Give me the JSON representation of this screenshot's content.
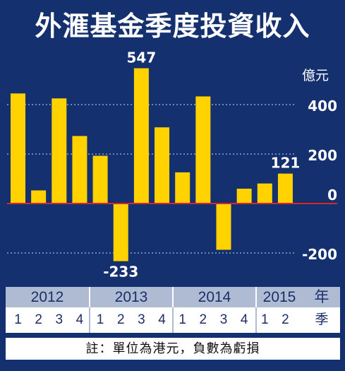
{
  "title": "外滙基金季度投資收入",
  "unit_label": "億元",
  "year_suffix": "年",
  "quarter_suffix": "季",
  "note": "註：單位為港元，負數為虧損",
  "colors": {
    "background": "#15306e",
    "bar": "#ffd200",
    "zero_line": "#d7262f",
    "grid": "#8fa3cc",
    "band_years": "#aebbd3",
    "band_quarters": "#ffffff"
  },
  "chart_data": {
    "type": "bar",
    "title": "外滙基金季度投資收入",
    "ylabel": "億元",
    "ylim": [
      -250,
      600
    ],
    "yticks": [
      400,
      200,
      0,
      -200
    ],
    "grid": true,
    "years": [
      "2012",
      "2013",
      "2014",
      "2015"
    ],
    "quarters": [
      "1",
      "2",
      "3",
      "4",
      "1",
      "2",
      "3",
      "4",
      "1",
      "2",
      "3",
      "4",
      "1",
      "2"
    ],
    "categories": [
      "2012 Q1",
      "2012 Q2",
      "2012 Q3",
      "2012 Q4",
      "2013 Q1",
      "2013 Q2",
      "2013 Q3",
      "2013 Q4",
      "2014 Q1",
      "2014 Q2",
      "2014 Q3",
      "2014 Q4",
      "2015 Q1",
      "2015 Q2"
    ],
    "values": [
      445,
      53,
      425,
      273,
      193,
      -233,
      547,
      308,
      126,
      433,
      -187,
      60,
      81,
      121
    ],
    "data_labels": {
      "6": "547",
      "5": "-233",
      "13": "121"
    }
  }
}
